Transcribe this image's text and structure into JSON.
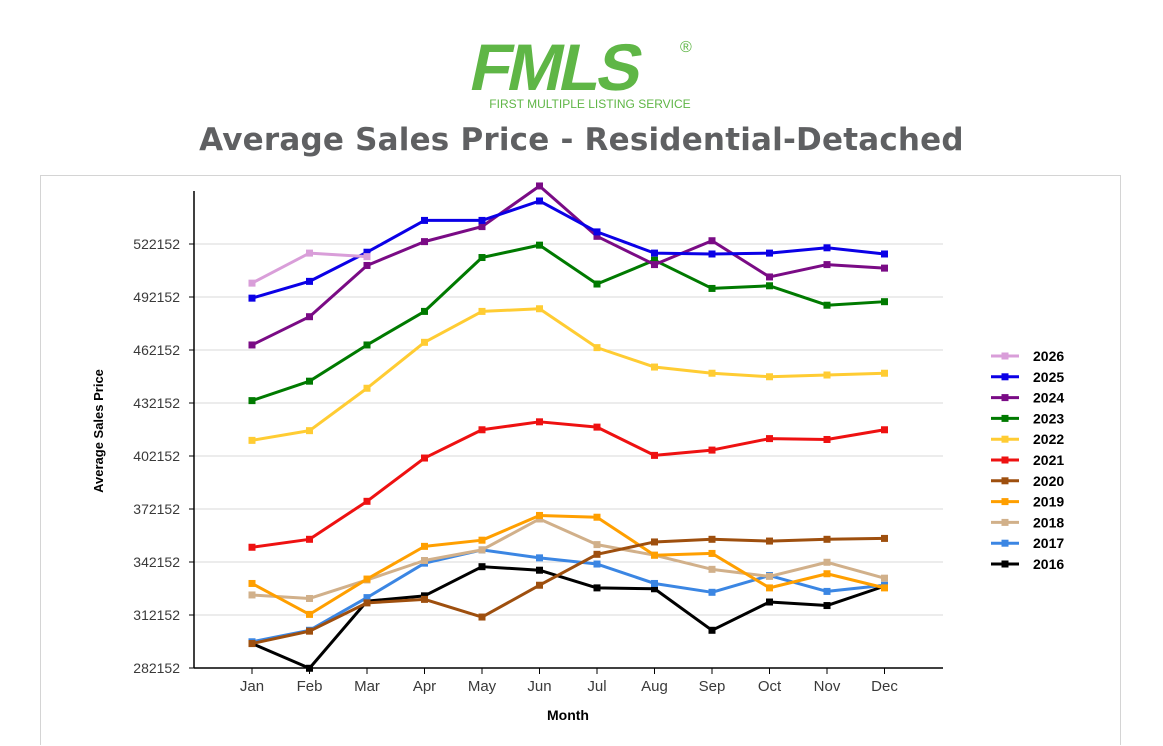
{
  "logo": {
    "wordmark": "FMLS",
    "registered": "®",
    "tagline": "FIRST MULTIPLE LISTING SERVICE"
  },
  "page": {
    "title": "Average Sales Price - Residential-Detached"
  },
  "chart_data": {
    "type": "line",
    "title": "Average Sales Price - Residential-Detached",
    "xlabel": "Month",
    "ylabel": "Average Sales Price",
    "categories": [
      "Jan",
      "Feb",
      "Mar",
      "Apr",
      "May",
      "Jun",
      "Jul",
      "Aug",
      "Sep",
      "Oct",
      "Nov",
      "Dec"
    ],
    "yticks": [
      282152,
      312152,
      342152,
      372152,
      402152,
      432152,
      462152,
      492152,
      522152
    ],
    "ylim": [
      282152,
      552152
    ],
    "grid": true,
    "legend_position": "right",
    "series": [
      {
        "name": "2026",
        "color": "#d99ed9",
        "values": [
          500000,
          517000,
          515000,
          null,
          null,
          null,
          null,
          null,
          null,
          null,
          null,
          null
        ]
      },
      {
        "name": "2025",
        "color": "#0b00e6",
        "values": [
          491500,
          501000,
          517500,
          535500,
          535500,
          546500,
          529000,
          517000,
          516500,
          517000,
          520000,
          516500
        ]
      },
      {
        "name": "2024",
        "color": "#7a0b85",
        "values": [
          465000,
          481000,
          510000,
          523500,
          532000,
          555000,
          526500,
          510500,
          524000,
          503500,
          510500,
          508500
        ]
      },
      {
        "name": "2023",
        "color": "#007a00",
        "values": [
          433500,
          444500,
          465000,
          484000,
          514500,
          521500,
          499500,
          513000,
          497000,
          498500,
          487500,
          489500
        ]
      },
      {
        "name": "2022",
        "color": "#ffcc33",
        "values": [
          411000,
          416500,
          440500,
          466500,
          484000,
          485500,
          463500,
          452500,
          449000,
          447000,
          448000,
          449000
        ]
      },
      {
        "name": "2021",
        "color": "#ee1111",
        "values": [
          350500,
          355000,
          376500,
          401000,
          417000,
          421500,
          418500,
          402500,
          405500,
          412000,
          411500,
          417000
        ]
      },
      {
        "name": "2020",
        "color": "#9e4f0e",
        "values": [
          296000,
          303000,
          319000,
          321000,
          311000,
          329000,
          346500,
          353500,
          355000,
          354000,
          355000,
          355500
        ]
      },
      {
        "name": "2019",
        "color": "#ff9f00",
        "values": [
          330000,
          312500,
          332500,
          351000,
          354500,
          368500,
          367500,
          346000,
          347000,
          327500,
          335500,
          327500
        ]
      },
      {
        "name": "2018",
        "color": "#d1b08a",
        "values": [
          323500,
          321500,
          332000,
          343000,
          349000,
          366500,
          352000,
          346000,
          338000,
          334000,
          342000,
          333000
        ]
      },
      {
        "name": "2017",
        "color": "#3b86e3",
        "values": [
          297000,
          303500,
          322000,
          341500,
          349000,
          344500,
          341000,
          330000,
          325000,
          334500,
          325500,
          329000
        ]
      },
      {
        "name": "2016",
        "color": "#000000",
        "values": [
          296000,
          282000,
          320000,
          323000,
          339500,
          337500,
          327500,
          327000,
          303500,
          319500,
          317500,
          328500
        ]
      }
    ]
  }
}
